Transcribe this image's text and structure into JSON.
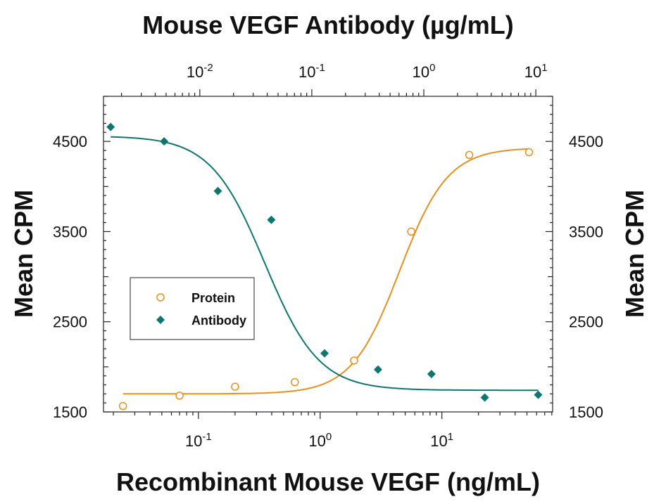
{
  "chart_data": {
    "type": "scatter",
    "title": "",
    "top_axis": {
      "label": "Mouse VEGF Antibody (µg/mL)",
      "scale": "log",
      "ticks": [
        {
          "value": 0.01,
          "base": "10",
          "exp": "-2"
        },
        {
          "value": 0.1,
          "base": "10",
          "exp": "-1"
        },
        {
          "value": 1,
          "base": "10",
          "exp": "0"
        },
        {
          "value": 10,
          "base": "10",
          "exp": "1"
        }
      ]
    },
    "bottom_axis": {
      "label": "Recombinant Mouse VEGF (ng/mL)",
      "scale": "log",
      "ticks": [
        {
          "value": 0.1,
          "base": "10",
          "exp": "-1"
        },
        {
          "value": 1,
          "base": "10",
          "exp": "0"
        },
        {
          "value": 10,
          "base": "10",
          "exp": "1"
        }
      ]
    },
    "left_axis": {
      "label": "Mean CPM",
      "ylim": [
        1500,
        5000
      ],
      "ticks": [
        "1500",
        "2500",
        "3500",
        "4500"
      ]
    },
    "right_axis": {
      "label": "Mean CPM",
      "ylim": [
        1500,
        5000
      ],
      "ticks": [
        "1500",
        "2500",
        "3500",
        "4500"
      ]
    },
    "legend": {
      "position": "left",
      "entries": [
        "Protein",
        "Antibody"
      ]
    },
    "grid": false,
    "series": [
      {
        "name": "Protein",
        "axis": "bottom",
        "color": "#E8901E",
        "marker": "open-circle",
        "x": [
          0.024,
          0.07,
          0.2,
          0.62,
          1.9,
          5.6,
          16.8,
          52
        ],
        "y": [
          1565,
          1680,
          1780,
          1830,
          2070,
          3500,
          4350,
          4380
        ],
        "fit": {
          "bottom": 1700,
          "top": 4430,
          "ec50": 4.5,
          "hill": 2.2
        }
      },
      {
        "name": "Antibody",
        "axis": "top",
        "color": "#0E7670",
        "marker": "filled-diamond",
        "x": [
          0.0016,
          0.0048,
          0.0145,
          0.0435,
          0.13,
          0.39,
          1.17,
          3.5,
          10.5
        ],
        "y": [
          4660,
          4500,
          3950,
          3630,
          2150,
          1970,
          1920,
          1660,
          1690
        ],
        "fit": {
          "bottom": 1740,
          "top": 4560,
          "ec50": 0.038,
          "hill": -1.8
        }
      }
    ]
  }
}
